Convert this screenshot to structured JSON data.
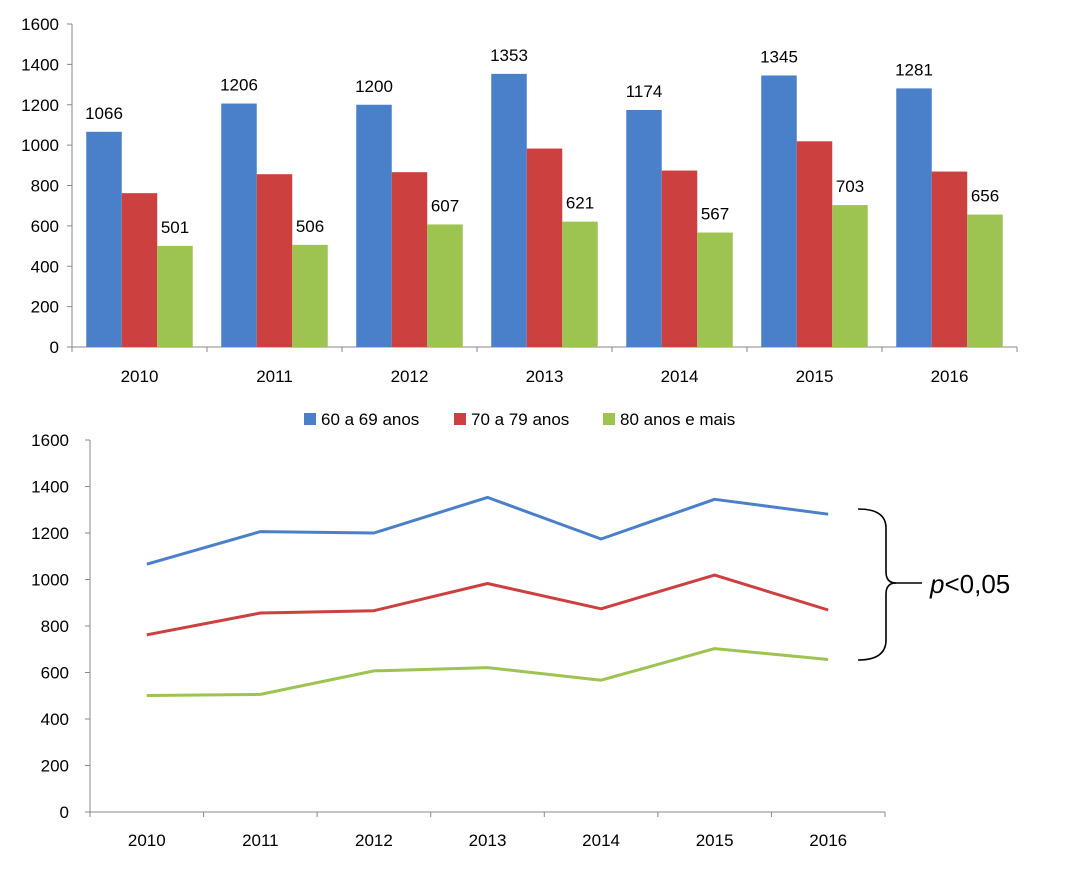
{
  "legend": {
    "position": "between-charts",
    "items": [
      {
        "label": "60 a 69 anos",
        "color": "#4a7fc9"
      },
      {
        "label": "70 a 79 anos",
        "color": "#cc4040"
      },
      {
        "label": "80 anos e mais",
        "color": "#9dc350"
      }
    ]
  },
  "annotation": {
    "p_italic": "p",
    "rest": "<0,05"
  },
  "chart_data": [
    {
      "type": "bar",
      "categories": [
        "2010",
        "2011",
        "2012",
        "2013",
        "2014",
        "2015",
        "2016"
      ],
      "series": [
        {
          "name": "60 a 69 anos",
          "color": "#4a7fc9",
          "values": [
            1066,
            1206,
            1200,
            1353,
            1174,
            1345,
            1281
          ],
          "labels": [
            "1066",
            "1206",
            "1200",
            "1353",
            "1174",
            "1345",
            "1281"
          ]
        },
        {
          "name": "70 a 79 anos",
          "color": "#cc4040",
          "values": [
            762,
            856,
            866,
            983,
            874,
            1019,
            869
          ],
          "labels": []
        },
        {
          "name": "80 anos e mais",
          "color": "#9dc350",
          "values": [
            501,
            506,
            607,
            621,
            567,
            703,
            656
          ],
          "labels": [
            "501",
            "506",
            "607",
            "621",
            "567",
            "703",
            "656"
          ]
        }
      ],
      "ylim": [
        0,
        1600
      ],
      "yticks": [
        "0",
        "200",
        "400",
        "600",
        "800",
        "1000",
        "1200",
        "1400",
        "1600"
      ],
      "grid": false
    },
    {
      "type": "line",
      "categories": [
        "2010",
        "2011",
        "2012",
        "2013",
        "2014",
        "2015",
        "2016"
      ],
      "series": [
        {
          "name": "60 a 69 anos",
          "color": "#4a7fc9",
          "values": [
            1066,
            1206,
            1200,
            1353,
            1174,
            1345,
            1281
          ]
        },
        {
          "name": "70 a 79 anos",
          "color": "#cc4040",
          "values": [
            762,
            856,
            866,
            983,
            874,
            1019,
            869
          ]
        },
        {
          "name": "80 anos e mais",
          "color": "#9dc350",
          "values": [
            501,
            506,
            607,
            621,
            567,
            703,
            656
          ]
        }
      ],
      "ylim": [
        0,
        1600
      ],
      "yticks": [
        "0",
        "200",
        "400",
        "600",
        "800",
        "1000",
        "1200",
        "1400",
        "1600"
      ],
      "grid": false
    }
  ]
}
